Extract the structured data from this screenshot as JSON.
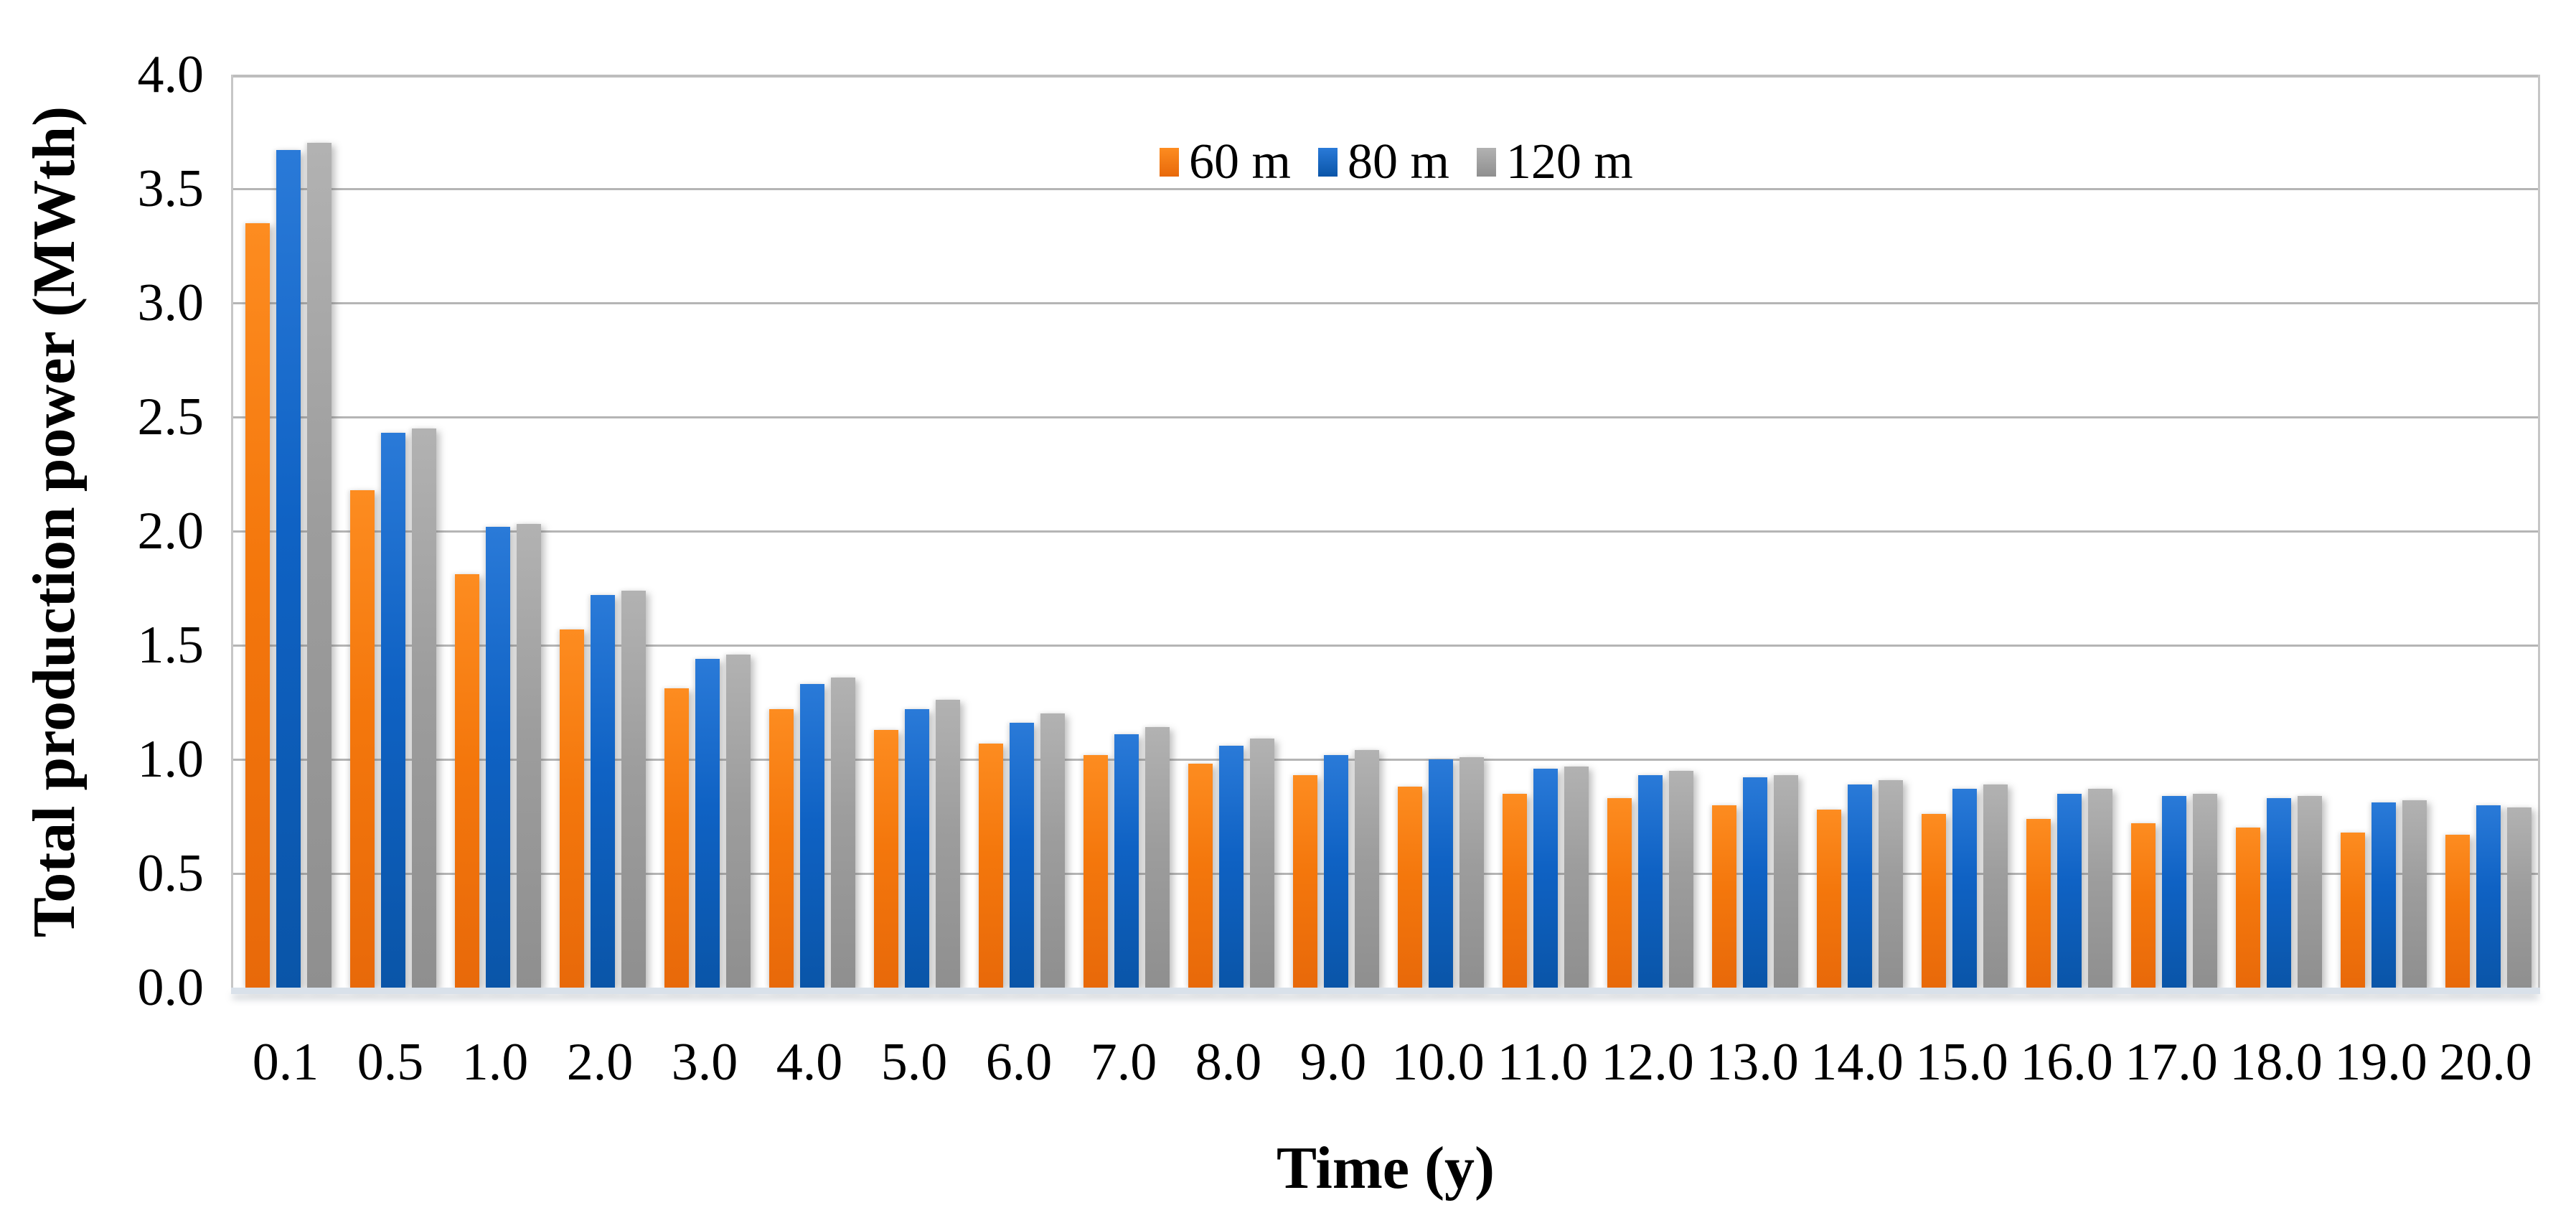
{
  "chart_data": {
    "type": "bar",
    "title": "",
    "xlabel": "Time (y)",
    "ylabel": "Total production power (MWth)",
    "ylim": [
      0,
      4
    ],
    "ytick_step": 0.5,
    "y_ticks": [
      "0.0",
      "0.5",
      "1.0",
      "1.5",
      "2.0",
      "2.5",
      "3.0",
      "3.5",
      "4.0"
    ],
    "grid": "horizontal-only",
    "legend_position": "top-center-inside",
    "categories": [
      "0.1",
      "0.5",
      "1.0",
      "2.0",
      "3.0",
      "4.0",
      "5.0",
      "6.0",
      "7.0",
      "8.0",
      "9.0",
      "10.0",
      "11.0",
      "12.0",
      "13.0",
      "14.0",
      "15.0",
      "16.0",
      "17.0",
      "18.0",
      "19.0",
      "20.0"
    ],
    "series": [
      {
        "name": "60 m",
        "color": "#f4770c",
        "values": [
          3.35,
          2.18,
          1.81,
          1.57,
          1.31,
          1.22,
          1.13,
          1.07,
          1.02,
          0.98,
          0.93,
          0.88,
          0.85,
          0.83,
          0.8,
          0.78,
          0.76,
          0.74,
          0.72,
          0.7,
          0.68,
          0.67
        ]
      },
      {
        "name": "80 m",
        "color": "#0f62c4",
        "values": [
          3.67,
          2.43,
          2.02,
          1.72,
          1.44,
          1.33,
          1.22,
          1.16,
          1.11,
          1.06,
          1.02,
          1.0,
          0.96,
          0.93,
          0.92,
          0.89,
          0.87,
          0.85,
          0.84,
          0.83,
          0.81,
          0.8
        ]
      },
      {
        "name": "120 m",
        "color": "#9d9d9d",
        "values": [
          3.7,
          2.45,
          2.03,
          1.74,
          1.46,
          1.36,
          1.26,
          1.2,
          1.14,
          1.09,
          1.04,
          1.01,
          0.97,
          0.95,
          0.93,
          0.91,
          0.89,
          0.87,
          0.85,
          0.84,
          0.82,
          0.79
        ]
      }
    ]
  },
  "style_colors": {
    "gridline": "#b5b5b5",
    "plot_border": "#bdbdbd",
    "axis_baseline": "#d9e1ea",
    "series_orange": "#f4770c",
    "series_blue": "#0f62c4",
    "series_gray": "#9d9d9d",
    "text": "#000000",
    "background": "#ffffff"
  }
}
